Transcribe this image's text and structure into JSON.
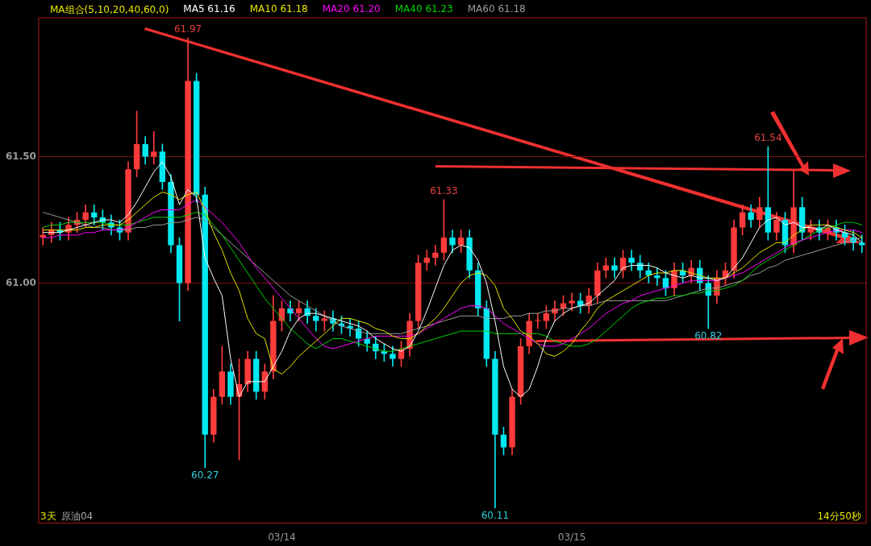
{
  "chart_data": {
    "type": "candlestick",
    "legend_title": "MA组合(5,10,20,40,60,0)",
    "legend": "top left",
    "grid": "y",
    "ylim": [
      60.05,
      62.05
    ],
    "yticks": [
      {
        "value": 61,
        "label": "61.00"
      },
      {
        "value": 61.5,
        "label": "61.50"
      }
    ],
    "categories": [
      null,
      null,
      null,
      null,
      null,
      null,
      null,
      null,
      null,
      null,
      null,
      null,
      null,
      null,
      null,
      null,
      null,
      null,
      null,
      null,
      null,
      null,
      null,
      null,
      null,
      null,
      null,
      null,
      "03/14",
      null,
      null,
      null,
      null,
      null,
      null,
      null,
      null,
      null,
      null,
      null,
      null,
      null,
      null,
      null,
      null,
      null,
      null,
      null,
      null,
      null,
      null,
      null,
      null,
      null,
      null,
      null,
      null,
      null,
      null,
      null,
      null,
      null,
      "03/15",
      null,
      null,
      null,
      null,
      null,
      null,
      null,
      null,
      null,
      null,
      null,
      null,
      null,
      null,
      null,
      null,
      null,
      null,
      null,
      null,
      null,
      null,
      null,
      null,
      null,
      null,
      null,
      null,
      null,
      null,
      null,
      null,
      null,
      null
    ],
    "ohlc": [
      [
        61.18,
        61.22,
        61.15,
        61.19
      ],
      [
        61.19,
        61.24,
        61.16,
        61.21
      ],
      [
        61.21,
        61.24,
        61.17,
        61.2
      ],
      [
        61.2,
        61.26,
        61.17,
        61.23
      ],
      [
        61.23,
        61.28,
        61.2,
        61.25
      ],
      [
        61.25,
        61.31,
        61.22,
        61.28
      ],
      [
        61.28,
        61.31,
        61.23,
        61.26
      ],
      [
        61.26,
        61.29,
        61.21,
        61.24
      ],
      [
        61.24,
        61.27,
        61.19,
        61.22
      ],
      [
        61.22,
        61.25,
        61.17,
        61.2
      ],
      [
        61.2,
        61.48,
        61.17,
        61.45
      ],
      [
        61.45,
        61.68,
        61.42,
        61.55
      ],
      [
        61.55,
        61.58,
        61.47,
        61.5
      ],
      [
        61.5,
        61.6,
        61.47,
        61.52
      ],
      [
        61.52,
        61.55,
        61.37,
        61.4
      ],
      [
        61.4,
        61.43,
        61.12,
        61.15
      ],
      [
        61.15,
        61.18,
        60.85,
        61.0
      ],
      [
        61.0,
        61.97,
        60.97,
        61.8
      ],
      [
        61.8,
        61.83,
        61.32,
        61.35
      ],
      [
        61.35,
        61.38,
        60.27,
        60.4
      ],
      [
        60.4,
        60.58,
        60.37,
        60.55
      ],
      [
        60.55,
        60.75,
        60.52,
        60.65
      ],
      [
        60.65,
        60.68,
        60.52,
        60.55
      ],
      [
        60.55,
        60.7,
        60.3,
        60.6
      ],
      [
        60.6,
        60.73,
        60.57,
        60.7
      ],
      [
        60.7,
        60.73,
        60.54,
        60.57
      ],
      [
        60.57,
        60.68,
        60.54,
        60.65
      ],
      [
        60.65,
        60.95,
        60.62,
        60.85
      ],
      [
        60.85,
        60.93,
        60.81,
        60.9
      ],
      [
        60.9,
        60.93,
        60.85,
        60.88
      ],
      [
        60.88,
        60.93,
        60.85,
        60.9
      ],
      [
        60.9,
        60.93,
        60.84,
        60.87
      ],
      [
        60.87,
        60.9,
        60.81,
        60.85
      ],
      [
        60.85,
        60.89,
        60.81,
        60.86
      ],
      [
        60.86,
        60.89,
        60.81,
        60.84
      ],
      [
        60.84,
        60.87,
        60.8,
        60.83
      ],
      [
        60.83,
        60.86,
        60.79,
        60.82
      ],
      [
        60.82,
        60.85,
        60.75,
        60.78
      ],
      [
        60.78,
        60.81,
        60.73,
        60.76
      ],
      [
        60.76,
        60.79,
        60.7,
        60.73
      ],
      [
        60.73,
        60.76,
        60.69,
        60.72
      ],
      [
        60.72,
        60.75,
        60.67,
        60.7
      ],
      [
        60.7,
        60.77,
        60.67,
        60.74
      ],
      [
        60.74,
        60.88,
        60.71,
        60.85
      ],
      [
        60.85,
        61.11,
        60.82,
        61.08
      ],
      [
        61.08,
        61.13,
        61.05,
        61.1
      ],
      [
        61.1,
        61.15,
        61.07,
        61.12
      ],
      [
        61.12,
        61.33,
        61.09,
        61.18
      ],
      [
        61.18,
        61.21,
        61.12,
        61.15
      ],
      [
        61.15,
        61.21,
        61.12,
        61.18
      ],
      [
        61.18,
        61.21,
        61.02,
        61.05
      ],
      [
        61.05,
        61.08,
        60.87,
        60.9
      ],
      [
        60.9,
        60.93,
        60.67,
        60.7
      ],
      [
        60.7,
        60.73,
        60.11,
        60.4
      ],
      [
        60.4,
        60.43,
        60.32,
        60.35
      ],
      [
        60.35,
        60.58,
        60.32,
        60.55
      ],
      [
        60.55,
        60.78,
        60.52,
        60.75
      ],
      [
        60.75,
        60.88,
        60.72,
        60.85
      ],
      [
        60.85,
        60.88,
        60.82,
        60.85
      ],
      [
        60.85,
        60.91,
        60.82,
        60.88
      ],
      [
        60.88,
        60.93,
        60.85,
        60.9
      ],
      [
        60.9,
        60.95,
        60.87,
        60.92
      ],
      [
        60.92,
        60.96,
        60.89,
        60.93
      ],
      [
        60.93,
        60.96,
        60.88,
        60.91
      ],
      [
        60.91,
        60.98,
        60.88,
        60.95
      ],
      [
        60.95,
        61.08,
        60.92,
        61.05
      ],
      [
        61.05,
        61.1,
        61.02,
        61.07
      ],
      [
        61.07,
        61.1,
        61.02,
        61.05
      ],
      [
        61.05,
        61.13,
        61.02,
        61.1
      ],
      [
        61.1,
        61.13,
        61.05,
        61.08
      ],
      [
        61.08,
        61.11,
        61.02,
        61.05
      ],
      [
        61.05,
        61.08,
        61.0,
        61.03
      ],
      [
        61.03,
        61.06,
        60.99,
        61.02
      ],
      [
        61.02,
        61.05,
        60.95,
        60.98
      ],
      [
        60.98,
        61.08,
        60.95,
        61.05
      ],
      [
        61.05,
        61.08,
        61.0,
        61.03
      ],
      [
        61.03,
        61.09,
        61.0,
        61.06
      ],
      [
        61.06,
        61.09,
        60.97,
        61.0
      ],
      [
        61.0,
        61.03,
        60.82,
        60.95
      ],
      [
        60.95,
        61.05,
        60.92,
        61.02
      ],
      [
        61.02,
        61.08,
        60.99,
        61.05
      ],
      [
        61.05,
        61.25,
        61.02,
        61.22
      ],
      [
        61.22,
        61.31,
        61.19,
        61.28
      ],
      [
        61.28,
        61.31,
        61.22,
        61.25
      ],
      [
        61.25,
        61.34,
        61.22,
        61.3
      ],
      [
        61.3,
        61.54,
        61.17,
        61.2
      ],
      [
        61.2,
        61.28,
        61.17,
        61.25
      ],
      [
        61.25,
        61.28,
        61.12,
        61.15
      ],
      [
        61.15,
        61.45,
        61.12,
        61.3
      ],
      [
        61.3,
        61.34,
        61.17,
        61.2
      ],
      [
        61.2,
        61.25,
        61.17,
        61.22
      ],
      [
        61.22,
        61.25,
        61.17,
        61.2
      ],
      [
        61.2,
        61.25,
        61.17,
        61.22
      ],
      [
        61.22,
        61.25,
        61.17,
        61.2
      ],
      [
        61.2,
        61.23,
        61.15,
        61.18
      ],
      [
        61.18,
        61.21,
        61.13,
        61.16
      ],
      [
        61.16,
        61.19,
        61.12,
        61.15
      ]
    ],
    "series": [
      {
        "name": "MA5 61.16",
        "type": "line",
        "color": "#ffffff",
        "values": [
          61.2,
          61.2,
          61.2,
          61.21,
          61.22,
          61.23,
          61.24,
          61.25,
          61.25,
          61.24,
          61.27,
          61.32,
          61.38,
          61.44,
          61.48,
          61.42,
          61.31,
          61.37,
          61.34,
          61.1,
          61.02,
          60.95,
          60.7,
          60.55,
          60.61,
          60.61,
          60.61,
          60.67,
          60.73,
          60.81,
          60.86,
          60.88,
          60.88,
          60.87,
          60.86,
          60.85,
          60.84,
          60.83,
          60.81,
          60.78,
          60.76,
          60.74,
          60.73,
          60.75,
          60.81,
          60.89,
          60.98,
          61.07,
          61.13,
          61.15,
          61.14,
          61.09,
          61.0,
          60.85,
          60.67,
          60.58,
          60.55,
          60.58,
          60.67,
          60.78,
          60.85,
          60.88,
          60.9,
          60.91,
          60.92,
          60.95,
          60.98,
          61.01,
          61.06,
          61.07,
          61.07,
          61.07,
          61.06,
          61.04,
          61.03,
          61.02,
          61.03,
          61.02,
          61.02,
          61.01,
          61.02,
          61.06,
          61.1,
          61.16,
          61.22,
          61.25,
          61.26,
          61.23,
          61.24,
          61.22,
          61.22,
          61.21,
          61.23,
          61.21,
          61.2,
          61.19,
          61.16
        ]
      },
      {
        "name": "MA10 61.18",
        "type": "line",
        "color": "#e6e600",
        "values": [
          61.21,
          61.21,
          61.21,
          61.21,
          61.21,
          61.22,
          61.22,
          61.23,
          61.23,
          61.23,
          61.25,
          61.28,
          61.31,
          61.34,
          61.36,
          61.35,
          61.33,
          61.35,
          61.36,
          61.29,
          61.2,
          61.13,
          61.04,
          60.97,
          60.86,
          60.8,
          60.78,
          60.66,
          60.64,
          60.67,
          60.71,
          60.74,
          60.77,
          60.8,
          60.83,
          60.86,
          60.86,
          60.85,
          60.84,
          60.82,
          60.81,
          60.79,
          60.78,
          60.78,
          60.8,
          60.83,
          60.86,
          60.9,
          60.95,
          61.0,
          61.03,
          61.04,
          61.03,
          60.99,
          60.9,
          60.86,
          60.81,
          60.79,
          60.76,
          60.72,
          60.71,
          60.73,
          60.76,
          60.81,
          60.85,
          60.9,
          60.93,
          60.95,
          60.97,
          60.99,
          61.01,
          61.03,
          61.04,
          61.04,
          61.05,
          61.05,
          61.04,
          61.03,
          61.02,
          61.02,
          61.02,
          61.04,
          61.06,
          61.09,
          61.12,
          61.14,
          61.16,
          61.16,
          61.19,
          61.21,
          61.23,
          61.23,
          61.23,
          61.22,
          61.21,
          61.2,
          61.18
        ]
      },
      {
        "name": "MA20 61.20",
        "type": "line",
        "color": "#ff00ff",
        "values": [
          61.18,
          61.18,
          61.19,
          61.19,
          61.19,
          61.2,
          61.2,
          61.21,
          61.21,
          61.21,
          61.22,
          61.24,
          61.26,
          61.28,
          61.29,
          61.29,
          61.29,
          61.31,
          61.33,
          61.3,
          61.27,
          61.24,
          61.2,
          61.16,
          61.11,
          61.06,
          61.02,
          60.98,
          60.94,
          60.9,
          60.86,
          60.82,
          60.78,
          60.75,
          60.74,
          60.75,
          60.76,
          60.77,
          60.78,
          60.79,
          60.79,
          60.79,
          60.79,
          60.79,
          60.8,
          60.82,
          60.84,
          60.86,
          60.88,
          60.9,
          60.91,
          60.91,
          60.9,
          60.87,
          60.84,
          60.82,
          60.8,
          60.78,
          60.76,
          60.75,
          60.75,
          60.76,
          60.78,
          60.8,
          60.82,
          60.85,
          60.88,
          60.9,
          60.92,
          60.93,
          60.95,
          60.96,
          60.97,
          60.98,
          60.99,
          61.0,
          61.01,
          61.01,
          61.01,
          61.01,
          61.02,
          61.03,
          61.04,
          61.06,
          61.08,
          61.1,
          61.12,
          61.14,
          61.16,
          61.17,
          61.18,
          61.19,
          61.2,
          61.21,
          61.21,
          61.21,
          61.2
        ]
      },
      {
        "name": "MA40 61.23",
        "type": "line",
        "color": "#00d200",
        "values": [
          61.22,
          61.23,
          61.23,
          61.24,
          61.24,
          61.24,
          61.24,
          61.24,
          61.23,
          61.23,
          61.23,
          61.24,
          61.25,
          61.26,
          61.26,
          61.26,
          61.26,
          61.27,
          61.28,
          61.27,
          61.23,
          61.19,
          61.14,
          61.09,
          61.04,
          60.99,
          60.94,
          60.9,
          60.86,
          60.82,
          60.79,
          60.76,
          60.74,
          60.76,
          60.78,
          60.78,
          60.77,
          60.76,
          60.75,
          60.74,
          60.73,
          60.73,
          60.74,
          60.75,
          60.76,
          60.77,
          60.78,
          60.79,
          60.8,
          60.81,
          60.81,
          60.81,
          60.81,
          60.8,
          60.8,
          60.8,
          60.8,
          60.8,
          60.8,
          60.79,
          60.77,
          60.76,
          60.75,
          60.75,
          60.76,
          60.78,
          60.81,
          60.84,
          60.87,
          60.9,
          60.92,
          60.93,
          60.94,
          60.94,
          60.95,
          60.95,
          60.96,
          60.96,
          60.97,
          60.97,
          60.98,
          60.99,
          61.01,
          61.04,
          61.07,
          61.09,
          61.11,
          61.13,
          61.15,
          61.17,
          61.19,
          61.21,
          61.22,
          61.23,
          61.24,
          61.24,
          61.23
        ]
      },
      {
        "name": "MA60 61.18",
        "type": "line",
        "color": "#9a9a9a",
        "values": [
          61.28,
          61.27,
          61.26,
          61.25,
          61.24,
          61.23,
          61.22,
          61.22,
          61.21,
          61.21,
          61.21,
          61.22,
          61.22,
          61.23,
          61.23,
          61.24,
          61.24,
          61.25,
          61.26,
          61.25,
          61.22,
          61.19,
          61.16,
          61.13,
          61.1,
          61.07,
          61.04,
          61.01,
          60.98,
          60.95,
          60.93,
          60.91,
          60.89,
          60.87,
          60.85,
          60.83,
          60.82,
          60.81,
          60.8,
          60.8,
          60.8,
          60.8,
          60.8,
          60.81,
          60.82,
          60.83,
          60.84,
          60.85,
          60.86,
          60.87,
          60.87,
          60.87,
          60.86,
          60.86,
          60.86,
          60.87,
          60.87,
          60.88,
          60.88,
          60.89,
          60.89,
          60.9,
          60.9,
          60.91,
          60.91,
          60.92,
          60.93,
          60.93,
          60.93,
          60.93,
          60.93,
          60.93,
          60.93,
          60.93,
          60.94,
          60.95,
          60.96,
          60.97,
          60.98,
          60.98,
          60.99,
          61.0,
          61.01,
          61.03,
          61.04,
          61.06,
          61.07,
          61.09,
          61.1,
          61.11,
          61.12,
          61.13,
          61.14,
          61.15,
          61.16,
          61.17,
          61.18
        ]
      }
    ],
    "annotations": [
      {
        "text": "61.97",
        "y": 61.97
      },
      {
        "text": "61.33",
        "y": 61.33
      },
      {
        "text": "61.54",
        "y": 61.54
      },
      {
        "text": "60.27",
        "y": 60.27
      },
      {
        "text": "60.11",
        "y": 60.11
      },
      {
        "text": "60.82",
        "y": 60.82
      },
      "3天",
      "原油04",
      "14分50秒"
    ]
  }
}
